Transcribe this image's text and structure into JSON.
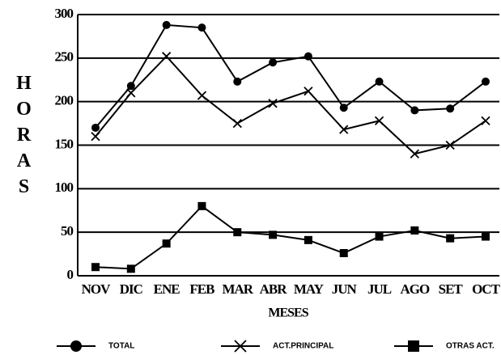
{
  "chart_data": {
    "type": "line",
    "y_label": "HORAS",
    "x_label": "MESES",
    "categories": [
      "NOV",
      "DIC",
      "ENE",
      "FEB",
      "MAR",
      "ABR",
      "MAY",
      "JUN",
      "JUL",
      "AGO",
      "SET",
      "OCT"
    ],
    "series": [
      {
        "name": "TOTAL",
        "color": "#000000",
        "marker": "circle",
        "values": [
          170,
          218,
          288,
          285,
          223,
          245,
          252,
          193,
          223,
          190,
          192,
          223
        ]
      },
      {
        "name": "ACT.PRINCIPAL",
        "color": "#000000",
        "marker": "x",
        "values": [
          160,
          210,
          252,
          207,
          175,
          198,
          212,
          168,
          178,
          140,
          150,
          178
        ]
      },
      {
        "name": "OTRAS ACT.",
        "color": "#000000",
        "marker": "square",
        "values": [
          10,
          8,
          37,
          80,
          50,
          47,
          41,
          26,
          45,
          52,
          43,
          45
        ]
      }
    ],
    "ylim": [
      0,
      300
    ],
    "yticks": [
      0,
      50,
      100,
      150,
      200,
      250,
      300
    ],
    "grid": true,
    "legend": "bottom"
  }
}
